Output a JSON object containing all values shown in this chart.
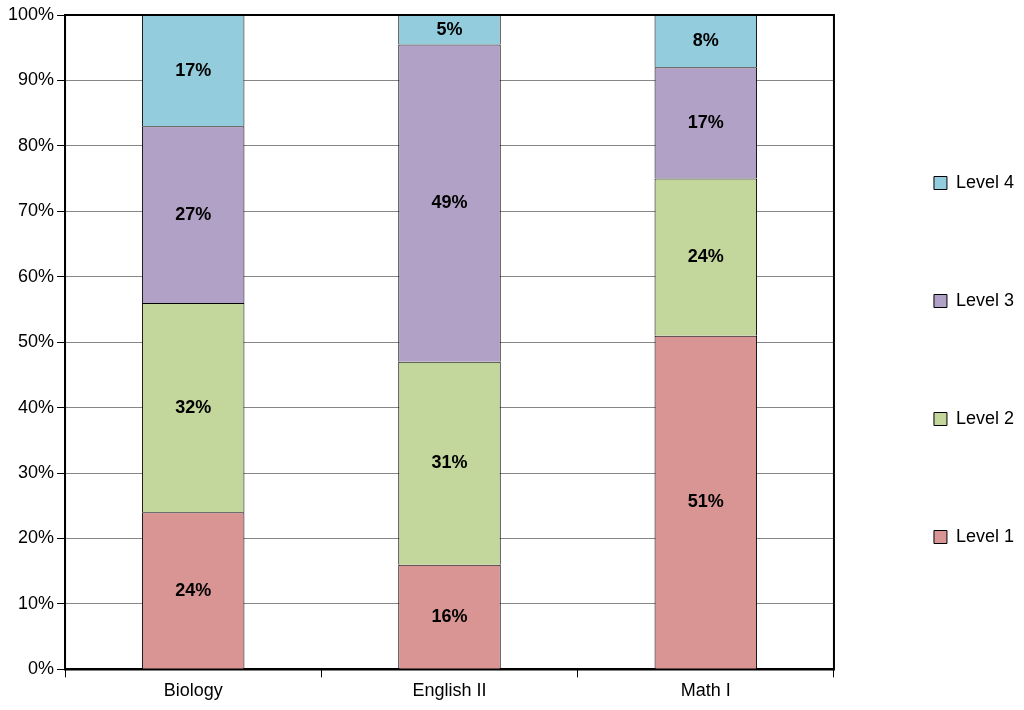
{
  "chart_data": {
    "type": "bar",
    "stacked": true,
    "categories": [
      "Biology",
      "English II",
      "Math I"
    ],
    "series": [
      {
        "name": "Level 1",
        "color": "#d99594",
        "values": [
          24,
          16,
          51
        ],
        "value_labels": [
          "24%",
          "16%",
          "51%"
        ]
      },
      {
        "name": "Level 2",
        "color": "#c3d69b",
        "values": [
          32,
          31,
          24
        ],
        "value_labels": [
          "32%",
          "31%",
          "24%"
        ]
      },
      {
        "name": "Level 3",
        "color": "#b2a1c7",
        "values": [
          27,
          48.5,
          17
        ],
        "value_labels": [
          "27%",
          "49%",
          "17%"
        ]
      },
      {
        "name": "Level 4",
        "color": "#93cddd",
        "values": [
          17,
          4.5,
          8
        ],
        "value_labels": [
          "17%",
          "5%",
          "8%"
        ]
      }
    ],
    "ylim": [
      0,
      100
    ],
    "yticks": [
      {
        "value": 0,
        "label": "0%"
      },
      {
        "value": 10,
        "label": "10%"
      },
      {
        "value": 20,
        "label": "20%"
      },
      {
        "value": 30,
        "label": "30%"
      },
      {
        "value": 40,
        "label": "40%"
      },
      {
        "value": 50,
        "label": "50%"
      },
      {
        "value": 60,
        "label": "60%"
      },
      {
        "value": 70,
        "label": "70%"
      },
      {
        "value": 80,
        "label": "80%"
      },
      {
        "value": 90,
        "label": "90%"
      },
      {
        "value": 100,
        "label": "100%"
      }
    ],
    "grid": "y",
    "legend": "right"
  }
}
